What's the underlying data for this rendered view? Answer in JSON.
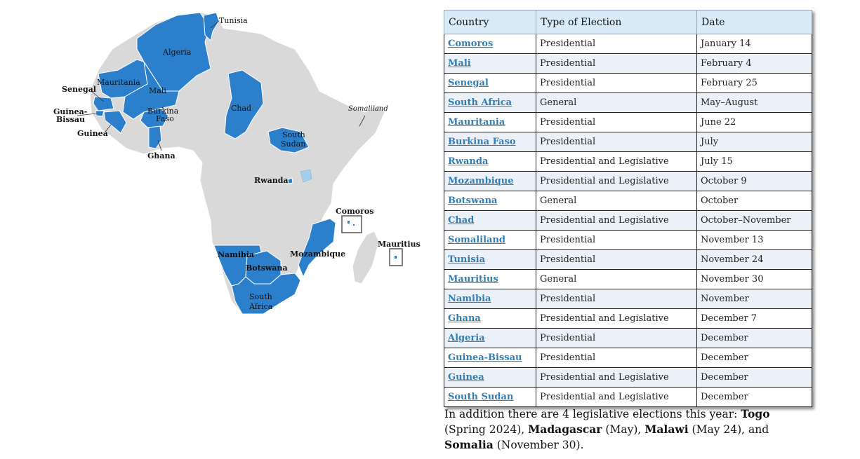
{
  "map": {
    "labels": {
      "tunisia": "Tunisia",
      "algeria": "Algeria",
      "mauritania": "Mauritania",
      "mali": "Mali",
      "senegal": "Senegal",
      "guinea_bissau_1": "Guinea-",
      "guinea_bissau_2": "Bissau",
      "guinea": "Guinea",
      "burkina_1": "Burkina",
      "burkina_2": "Faso",
      "ghana": "Ghana",
      "chad": "Chad",
      "somaliland": "Somaliland",
      "south_sudan_1": "South",
      "south_sudan_2": "Sudan",
      "rwanda": "Rwanda",
      "comoros": "Comoros",
      "mauritius": "Mauritius",
      "namibia": "Namibia",
      "mozambique": "Mozambique",
      "botswana": "Botswana",
      "south_africa_1": "South",
      "south_africa_2": "Africa"
    },
    "colors": {
      "election": "#2b7fcb",
      "other": "#d9d9d9",
      "lake": "#9fd0ee"
    }
  },
  "table": {
    "headers": {
      "country": "Country",
      "type": "Type of Election",
      "date": "Date"
    },
    "rows": [
      {
        "country": "Comoros",
        "type": "Presidential",
        "date": "January 14"
      },
      {
        "country": "Mali",
        "type": "Presidential",
        "date": "February 4"
      },
      {
        "country": "Senegal",
        "type": "Presidential",
        "date": "February 25"
      },
      {
        "country": "South Africa",
        "type": "General",
        "date": "May–August"
      },
      {
        "country": "Mauritania",
        "type": "Presidential",
        "date": "June 22"
      },
      {
        "country": "Burkina Faso",
        "type": "Presidential",
        "date": "July"
      },
      {
        "country": "Rwanda",
        "type": "Presidential and Legislative",
        "date": "July 15"
      },
      {
        "country": "Mozambique",
        "type": "Presidential and Legislative",
        "date": "October 9"
      },
      {
        "country": "Botswana",
        "type": "General",
        "date": "October"
      },
      {
        "country": "Chad",
        "type": "Presidential and Legislative",
        "date": "October–November"
      },
      {
        "country": "Somaliland",
        "type": "Presidential",
        "date": "November 13"
      },
      {
        "country": "Tunisia",
        "type": "Presidential",
        "date": "November 24"
      },
      {
        "country": "Mauritius",
        "type": "General",
        "date": "November 30"
      },
      {
        "country": "Namibia",
        "type": "Presidential",
        "date": "November"
      },
      {
        "country": "Ghana",
        "type": "Presidential and Legislative",
        "date": "December 7"
      },
      {
        "country": "Algeria",
        "type": "Presidential",
        "date": "December"
      },
      {
        "country": "Guinea-Bissau",
        "type": "Presidential",
        "date": "December"
      },
      {
        "country": "Guinea",
        "type": "Presidential and Legislative",
        "date": "December"
      },
      {
        "country": "South Sudan",
        "type": "Presidential and Legislative",
        "date": "December"
      }
    ]
  },
  "note": {
    "intro": "In addition there are 4 legislative elections this year: ",
    "c1": "Togo",
    "d1": " (Spring 2024), ",
    "c2": "Madagascar",
    "d2": " (May), ",
    "c3": "Malawi",
    "d3": " (May 24), and ",
    "c4": "Somalia",
    "d4": " (November 30)."
  }
}
